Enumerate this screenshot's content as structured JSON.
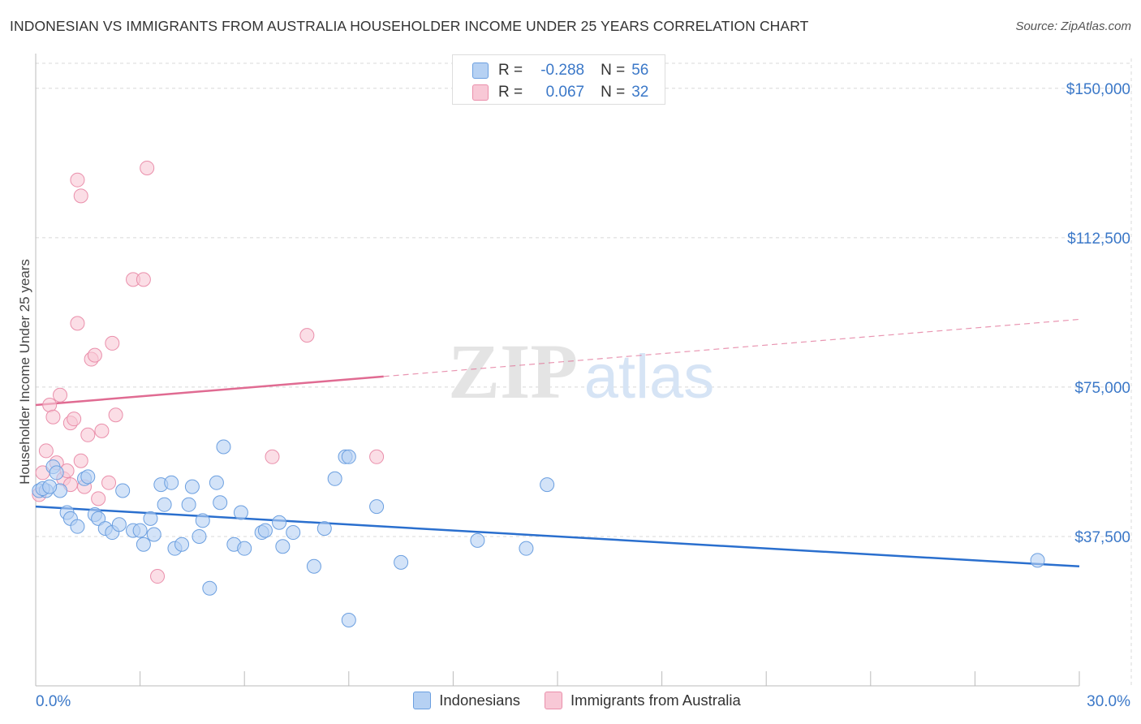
{
  "title": "INDONESIAN VS IMMIGRANTS FROM AUSTRALIA HOUSEHOLDER INCOME UNDER 25 YEARS CORRELATION CHART",
  "source": "Source: ZipAtlas.com",
  "watermark": {
    "zip": "ZIP",
    "atlas": "atlas"
  },
  "legend_top": {
    "rows": [
      {
        "r_label": "R =",
        "r_value": "-0.288",
        "n_label": "N =",
        "n_value": "56"
      },
      {
        "r_label": "R =",
        "r_value": "0.067",
        "n_label": "N =",
        "n_value": "32"
      }
    ]
  },
  "legend_bottom": [
    "Indonesians",
    "Immigrants from Australia"
  ],
  "colors": {
    "blue_fill": "#b6d1f3",
    "blue_stroke": "#6b9fe0",
    "blue_line": "#2a6fce",
    "pink_fill": "#f8c8d6",
    "pink_stroke": "#ea8fab",
    "pink_line": "#e06b92",
    "axis_label": "#3b78c8",
    "grid": "#d8d8d8"
  },
  "chart_data": {
    "type": "scatter",
    "title": "INDONESIAN VS IMMIGRANTS FROM AUSTRALIA HOUSEHOLDER INCOME UNDER 25 YEARS CORRELATION CHART",
    "xlabel": "",
    "ylabel": "Householder Income Under 25 years",
    "xlim": [
      0,
      30
    ],
    "ylim": [
      0,
      157500
    ],
    "x_tick_labels": [
      {
        "value": 0,
        "label": "0.0%"
      },
      {
        "value": 30,
        "label": "30.0%"
      }
    ],
    "y_ticks": [
      {
        "value": 37500,
        "label": "$37,500"
      },
      {
        "value": 75000,
        "label": "$75,000"
      },
      {
        "value": 112500,
        "label": "$112,500"
      },
      {
        "value": 150000,
        "label": "$150,000"
      }
    ],
    "grid": true,
    "series": [
      {
        "name": "Indonesians",
        "color": "blue",
        "r": -0.288,
        "n": 56,
        "trend": {
          "x": [
            0,
            30
          ],
          "y": [
            45000,
            30000
          ],
          "dashed_from": null
        },
        "points": [
          [
            0.1,
            49000
          ],
          [
            0.3,
            49000
          ],
          [
            0.5,
            55000
          ],
          [
            0.6,
            53500
          ],
          [
            0.7,
            49000
          ],
          [
            0.9,
            43500
          ],
          [
            1.0,
            42000
          ],
          [
            1.2,
            40000
          ],
          [
            1.4,
            52000
          ],
          [
            1.5,
            52500
          ],
          [
            1.7,
            43000
          ],
          [
            1.8,
            42000
          ],
          [
            2.0,
            39500
          ],
          [
            2.2,
            38500
          ],
          [
            2.4,
            40500
          ],
          [
            2.5,
            49000
          ],
          [
            2.8,
            39000
          ],
          [
            3.0,
            39000
          ],
          [
            3.1,
            35500
          ],
          [
            3.3,
            42000
          ],
          [
            3.4,
            38000
          ],
          [
            3.6,
            50500
          ],
          [
            3.7,
            45500
          ],
          [
            3.9,
            51000
          ],
          [
            4.0,
            34500
          ],
          [
            4.2,
            35500
          ],
          [
            4.4,
            45500
          ],
          [
            4.5,
            50000
          ],
          [
            4.7,
            37500
          ],
          [
            4.8,
            41500
          ],
          [
            5.0,
            24500
          ],
          [
            5.2,
            51000
          ],
          [
            5.3,
            46000
          ],
          [
            5.4,
            60000
          ],
          [
            5.7,
            35500
          ],
          [
            5.9,
            43500
          ],
          [
            6.0,
            34500
          ],
          [
            6.5,
            38500
          ],
          [
            6.6,
            39000
          ],
          [
            7.0,
            41000
          ],
          [
            7.1,
            35000
          ],
          [
            7.4,
            38500
          ],
          [
            8.0,
            30000
          ],
          [
            8.3,
            39500
          ],
          [
            8.6,
            52000
          ],
          [
            8.9,
            57500
          ],
          [
            9.0,
            57500
          ],
          [
            9.0,
            16500
          ],
          [
            9.8,
            45000
          ],
          [
            10.5,
            31000
          ],
          [
            12.7,
            36500
          ],
          [
            14.1,
            34500
          ],
          [
            14.7,
            50500
          ],
          [
            28.8,
            31500
          ],
          [
            0.2,
            49500
          ],
          [
            0.4,
            50000
          ]
        ]
      },
      {
        "name": "Immigrants from Australia",
        "color": "pink",
        "r": 0.067,
        "n": 32,
        "trend": {
          "x": [
            0,
            30
          ],
          "y": [
            70500,
            92000
          ],
          "dashed_from": 10
        },
        "points": [
          [
            0.1,
            48000
          ],
          [
            0.2,
            53500
          ],
          [
            0.3,
            59000
          ],
          [
            0.4,
            70500
          ],
          [
            0.5,
            67500
          ],
          [
            0.6,
            56000
          ],
          [
            0.7,
            73000
          ],
          [
            0.8,
            52000
          ],
          [
            0.9,
            54000
          ],
          [
            1.0,
            66000
          ],
          [
            1.1,
            67000
          ],
          [
            1.2,
            91000
          ],
          [
            1.3,
            56500
          ],
          [
            1.4,
            50000
          ],
          [
            1.5,
            63000
          ],
          [
            1.6,
            82000
          ],
          [
            1.7,
            83000
          ],
          [
            1.8,
            47000
          ],
          [
            1.9,
            64000
          ],
          [
            2.1,
            51000
          ],
          [
            2.2,
            86000
          ],
          [
            2.3,
            68000
          ],
          [
            2.8,
            102000
          ],
          [
            3.1,
            102000
          ],
          [
            3.5,
            27500
          ],
          [
            3.2,
            130000
          ],
          [
            1.2,
            127000
          ],
          [
            1.3,
            123000
          ],
          [
            6.8,
            57500
          ],
          [
            7.8,
            88000
          ],
          [
            9.8,
            57500
          ],
          [
            1.0,
            50500
          ]
        ]
      }
    ]
  }
}
